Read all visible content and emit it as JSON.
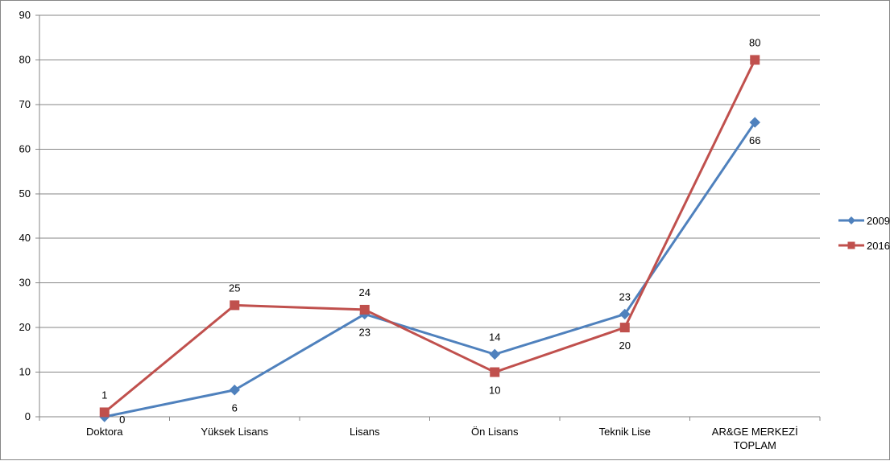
{
  "chart_data": {
    "type": "line",
    "title": "",
    "xlabel": "",
    "ylabel": "",
    "ylim": [
      0,
      90
    ],
    "yticks": [
      "0",
      "10",
      "20",
      "30",
      "40",
      "50",
      "60",
      "70",
      "80",
      "90"
    ],
    "categories": [
      "Doktora",
      "Yüksek Lisans",
      "Lisans",
      "Ön Lisans",
      "Teknik Lise",
      "AR&GE MERKEZİ TOPLAM"
    ],
    "category_lines": [
      [
        "Doktora"
      ],
      [
        "Yüksek Lisans"
      ],
      [
        "Lisans"
      ],
      [
        "Ön Lisans"
      ],
      [
        "Teknik Lise"
      ],
      [
        "AR&GE MERKEZİ",
        "TOPLAM"
      ]
    ],
    "grid": true,
    "legend_position": "right",
    "series": [
      {
        "name": "2009",
        "values": [
          0,
          6,
          23,
          14,
          23,
          66
        ],
        "labels": [
          "0",
          "6",
          "23",
          "14",
          "23",
          "66"
        ],
        "color": "#4F81BD",
        "marker": "diamond"
      },
      {
        "name": "2016",
        "values": [
          1,
          25,
          24,
          10,
          20,
          80
        ],
        "labels": [
          "1",
          "25",
          "24",
          "10",
          "20",
          "80"
        ],
        "color": "#C0504D",
        "marker": "square"
      }
    ]
  }
}
